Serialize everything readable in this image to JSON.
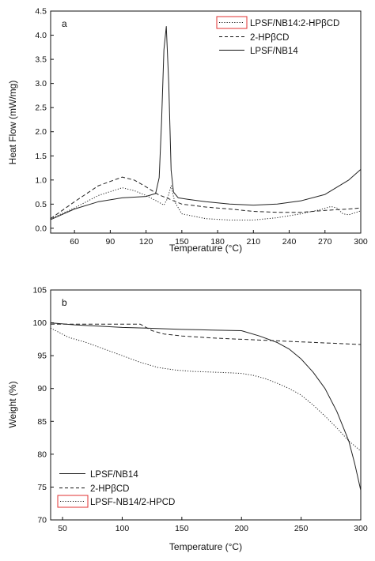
{
  "chart_data": [
    {
      "type": "line",
      "panel_label": "a",
      "xlabel": "Temperature (°C)",
      "ylabel": "Heat Flow (mW/mg)",
      "xlim": [
        40,
        300
      ],
      "ylim": [
        -0.1,
        4.5
      ],
      "xticks": [
        60,
        90,
        120,
        150,
        180,
        210,
        240,
        270,
        300
      ],
      "yticks": [
        0.0,
        0.5,
        1.0,
        1.5,
        2.0,
        2.5,
        3.0,
        3.5,
        4.0,
        4.5
      ],
      "ytick_labels": [
        "0.0",
        "0.5",
        "1.0",
        "1.5",
        "2.0",
        "2.5",
        "3.0",
        "3.5",
        "4.0",
        "4.5"
      ],
      "legend_position": "top-right",
      "legend_highlight_color": "#e03030",
      "series": [
        {
          "name": "LPSF/NB14:2-HPβCD",
          "style": "dotted",
          "x": [
            40,
            60,
            80,
            100,
            110,
            120,
            130,
            135,
            138,
            141,
            144,
            150,
            170,
            190,
            210,
            230,
            250,
            265,
            275,
            280,
            285,
            290,
            300
          ],
          "y": [
            0.2,
            0.42,
            0.68,
            0.84,
            0.78,
            0.68,
            0.55,
            0.48,
            0.62,
            0.88,
            0.55,
            0.3,
            0.2,
            0.17,
            0.17,
            0.22,
            0.3,
            0.38,
            0.45,
            0.42,
            0.3,
            0.28,
            0.36
          ]
        },
        {
          "name": "2-HPβCD",
          "style": "dashed",
          "x": [
            40,
            60,
            80,
            100,
            110,
            120,
            130,
            140,
            150,
            170,
            190,
            210,
            230,
            250,
            270,
            290,
            300
          ],
          "y": [
            0.2,
            0.55,
            0.88,
            1.06,
            1.0,
            0.86,
            0.7,
            0.6,
            0.5,
            0.44,
            0.4,
            0.35,
            0.33,
            0.33,
            0.37,
            0.4,
            0.42
          ]
        },
        {
          "name": "LPSF/NB14",
          "style": "solid",
          "x": [
            40,
            60,
            80,
            100,
            120,
            128,
            131,
            133,
            135,
            137,
            139,
            141,
            143,
            147,
            155,
            170,
            190,
            210,
            230,
            250,
            270,
            290,
            300
          ],
          "y": [
            0.18,
            0.4,
            0.55,
            0.63,
            0.66,
            0.72,
            1.05,
            2.2,
            3.7,
            4.18,
            3.0,
            1.2,
            0.75,
            0.63,
            0.6,
            0.55,
            0.5,
            0.48,
            0.5,
            0.57,
            0.7,
            1.0,
            1.22
          ]
        }
      ]
    },
    {
      "type": "line",
      "panel_label": "b",
      "xlabel": "Temperature (°C)",
      "ylabel": "Weight (%)",
      "xlim": [
        40,
        300
      ],
      "ylim": [
        70,
        105
      ],
      "xticks": [
        50,
        100,
        150,
        200,
        250,
        300
      ],
      "yticks": [
        70,
        75,
        80,
        85,
        90,
        95,
        100,
        105
      ],
      "legend_position": "bottom-left",
      "legend_highlight_color": "#e03030",
      "series": [
        {
          "name": "LPSF/NB14",
          "style": "solid",
          "x": [
            40,
            60,
            80,
            100,
            120,
            150,
            175,
            200,
            215,
            230,
            240,
            250,
            260,
            270,
            280,
            290,
            295,
            300
          ],
          "y": [
            100,
            99.7,
            99.5,
            99.3,
            99.2,
            99.0,
            98.9,
            98.8,
            98.0,
            97.0,
            96.0,
            94.5,
            92.5,
            90.0,
            86.5,
            82.0,
            78.5,
            74.5
          ]
        },
        {
          "name": "2-HPβCD",
          "style": "dashed",
          "x": [
            40,
            60,
            80,
            100,
            115,
            125,
            135,
            150,
            175,
            200,
            225,
            250,
            275,
            300
          ],
          "y": [
            99.8,
            99.8,
            99.8,
            99.8,
            99.8,
            98.8,
            98.3,
            98.0,
            97.7,
            97.5,
            97.3,
            97.1,
            96.9,
            96.7
          ]
        },
        {
          "name": "LPSF-NB14/2-HPCD",
          "style": "dotted",
          "x": [
            40,
            55,
            70,
            85,
            100,
            115,
            130,
            145,
            160,
            175,
            190,
            200,
            210,
            220,
            230,
            240,
            250,
            260,
            270,
            280,
            290,
            300
          ],
          "y": [
            99.2,
            97.8,
            97.0,
            96.0,
            95.0,
            94.0,
            93.2,
            92.8,
            92.6,
            92.5,
            92.4,
            92.3,
            92.0,
            91.5,
            90.8,
            90.0,
            89.0,
            87.5,
            85.8,
            84.0,
            82.0,
            80.5
          ]
        }
      ]
    }
  ]
}
